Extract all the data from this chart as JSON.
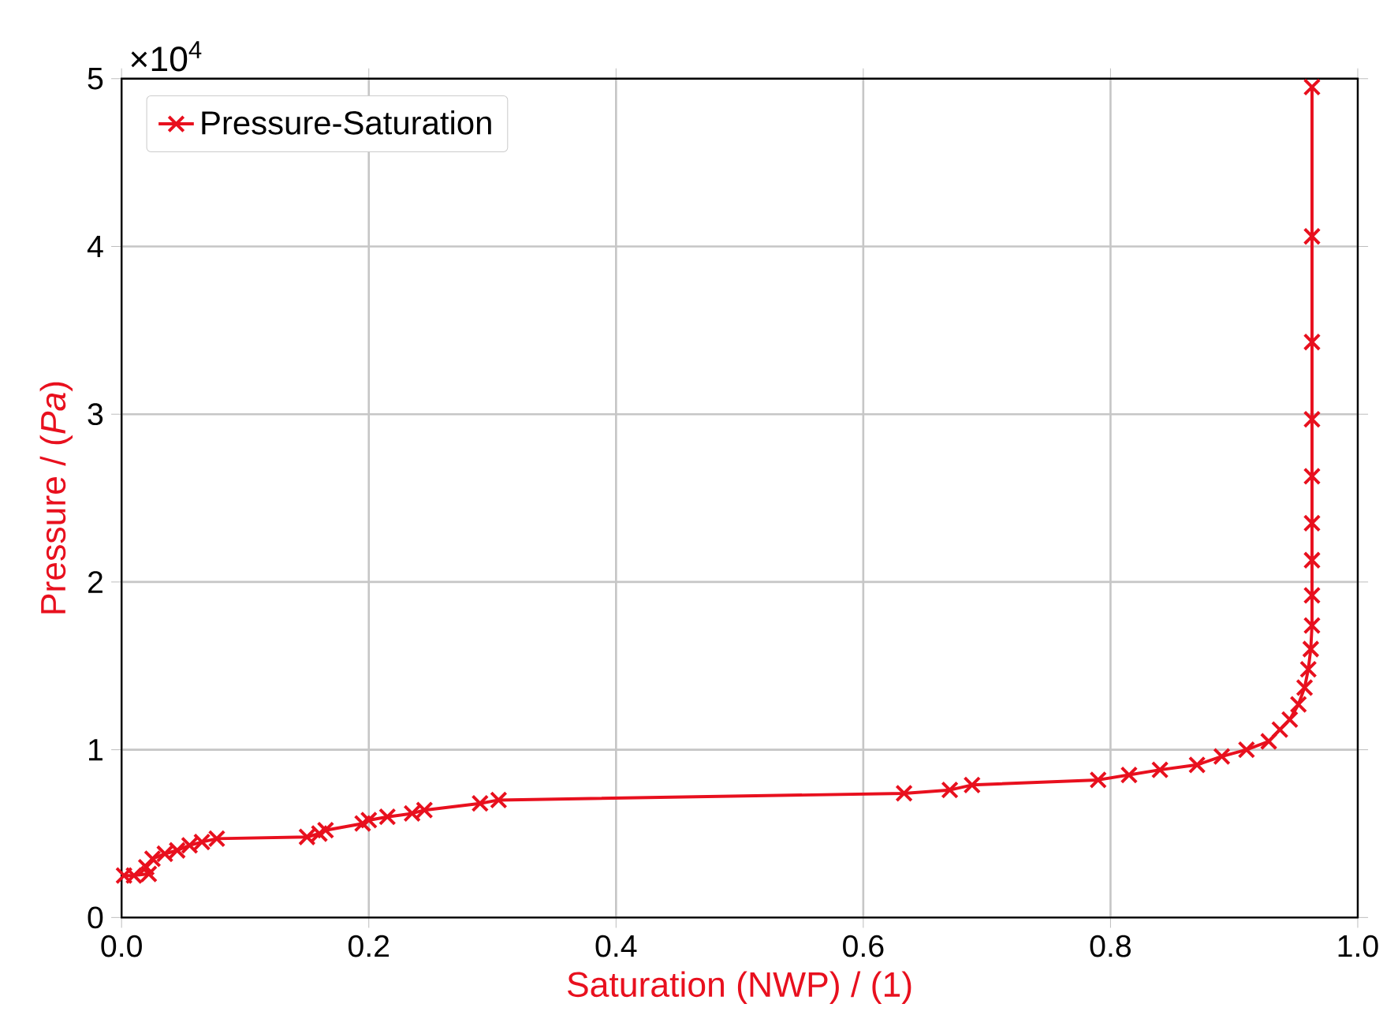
{
  "chart_data": {
    "type": "line",
    "xlabel": "Saturation (NWP) / (1)",
    "ylabel": "Pressure / (*Pa*)",
    "annotations": [
      "×10$^{4}$"
    ],
    "series": [
      {
        "name": "Pressure-Saturation",
        "color": "#e8101e",
        "x": [
          0.002,
          0.01,
          0.022,
          0.02,
          0.025,
          0.035,
          0.045,
          0.055,
          0.065,
          0.077,
          0.15,
          0.16,
          0.165,
          0.195,
          0.2,
          0.215,
          0.235,
          0.245,
          0.29,
          0.305,
          0.633,
          0.67,
          0.688,
          0.79,
          0.815,
          0.84,
          0.87,
          0.89,
          0.91,
          0.928,
          0.937,
          0.945,
          0.952,
          0.957,
          0.96,
          0.962,
          0.963,
          0.963,
          0.963,
          0.963,
          0.963,
          0.963,
          0.963,
          0.963,
          0.963
        ],
        "values": [
          0.25,
          0.25,
          0.26,
          0.3,
          0.35,
          0.38,
          0.4,
          0.43,
          0.45,
          0.47,
          0.48,
          0.5,
          0.52,
          0.56,
          0.58,
          0.6,
          0.62,
          0.64,
          0.68,
          0.7,
          0.74,
          0.76,
          0.79,
          0.82,
          0.85,
          0.88,
          0.91,
          0.96,
          1.0,
          1.05,
          1.12,
          1.18,
          1.27,
          1.37,
          1.48,
          1.6,
          1.74,
          1.92,
          2.13,
          2.35,
          2.63,
          2.97,
          3.43,
          4.06,
          4.95
        ]
      }
    ],
    "xlim": [
      0,
      1
    ],
    "xticks": [
      {
        "value": 0,
        "label": "0.0"
      },
      0.2,
      0.4,
      0.6,
      0.8,
      {
        "value": 1,
        "label": "1.0"
      }
    ],
    "ylim": [
      0,
      5
    ],
    "yticks": [
      0,
      1,
      2,
      3,
      4,
      5
    ],
    "grid": true,
    "legend": "top left",
    "marker": "cross",
    "line_style": "solid"
  }
}
